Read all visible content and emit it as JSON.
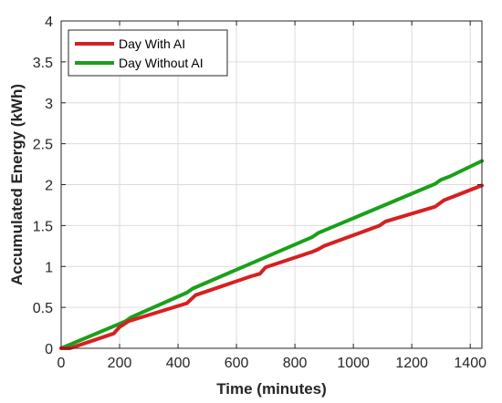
{
  "chart_data": {
    "type": "line",
    "title": "",
    "xlabel": "Time (minutes)",
    "ylabel": "Accumulated Energy (kWh)",
    "xlim": [
      0,
      1440
    ],
    "ylim": [
      0,
      4
    ],
    "xticks": [
      0,
      200,
      400,
      600,
      800,
      1000,
      1200,
      1400
    ],
    "yticks": [
      0,
      0.5,
      1,
      1.5,
      2,
      2.5,
      3,
      3.5,
      4
    ],
    "xtick_labels": [
      "0",
      "200",
      "400",
      "600",
      "800",
      "1000",
      "1200",
      "1400"
    ],
    "ytick_labels": [
      "0",
      "0.5",
      "1",
      "1.5",
      "2",
      "2.5",
      "3",
      "3.5",
      "4"
    ],
    "grid": true,
    "legend_position": "top-left",
    "series": [
      {
        "name": "Day With AI",
        "color": "#d62020",
        "x": [
          0,
          30,
          180,
          200,
          230,
          430,
          460,
          650,
          680,
          700,
          860,
          880,
          900,
          1090,
          1110,
          1280,
          1310,
          1440
        ],
        "y": [
          0,
          0.0,
          0.18,
          0.26,
          0.33,
          0.55,
          0.65,
          0.88,
          0.91,
          0.99,
          1.18,
          1.21,
          1.25,
          1.5,
          1.55,
          1.73,
          1.81,
          1.99
        ]
      },
      {
        "name": "Day Without AI",
        "color": "#1aa01a",
        "x": [
          0,
          200,
          220,
          240,
          430,
          450,
          860,
          880,
          900,
          1280,
          1300,
          1330,
          1440
        ],
        "y": [
          0,
          0.3,
          0.33,
          0.38,
          0.68,
          0.73,
          1.36,
          1.41,
          1.44,
          2.01,
          2.06,
          2.1,
          2.29
        ]
      }
    ]
  },
  "legend": {
    "items": [
      "Day With AI",
      "Day Without AI"
    ]
  }
}
